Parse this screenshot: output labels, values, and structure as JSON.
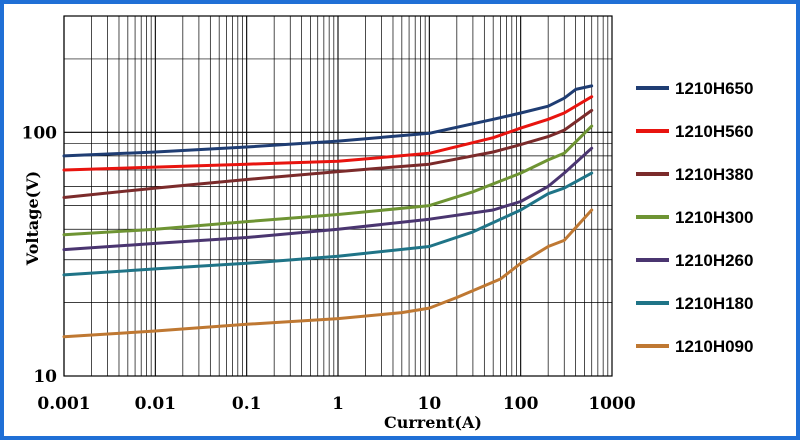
{
  "chart_data": {
    "type": "line",
    "title": "",
    "xlabel": "Current(A)",
    "ylabel": "Voltage(V)",
    "xscale": "log",
    "yscale": "log",
    "xlim": [
      0.001,
      1000
    ],
    "ylim": [
      10,
      300
    ],
    "x_ticks": [
      "0.001",
      "0.01",
      "0.1",
      "1",
      "10",
      "100",
      "1000"
    ],
    "y_ticks": [
      "10",
      "100"
    ],
    "grid": true,
    "legend_position": "right",
    "series": [
      {
        "name": "1210H650",
        "color": "#1f3d73",
        "points": [
          [
            0.001,
            80
          ],
          [
            0.01,
            83
          ],
          [
            0.1,
            87
          ],
          [
            1,
            92
          ],
          [
            10,
            99
          ],
          [
            50,
            113
          ],
          [
            100,
            120
          ],
          [
            200,
            128
          ],
          [
            300,
            138
          ],
          [
            400,
            150
          ],
          [
            600,
            155
          ]
        ]
      },
      {
        "name": "1210H560",
        "color": "#e8140f",
        "points": [
          [
            0.001,
            70
          ],
          [
            0.01,
            72
          ],
          [
            0.1,
            74
          ],
          [
            1,
            76
          ],
          [
            10,
            82
          ],
          [
            50,
            95
          ],
          [
            100,
            104
          ],
          [
            200,
            113
          ],
          [
            300,
            120
          ],
          [
            600,
            140
          ]
        ]
      },
      {
        "name": "1210H380",
        "color": "#7b2b2b",
        "points": [
          [
            0.001,
            54
          ],
          [
            0.01,
            59
          ],
          [
            0.1,
            64
          ],
          [
            1,
            69
          ],
          [
            10,
            74
          ],
          [
            50,
            83
          ],
          [
            100,
            89
          ],
          [
            200,
            96
          ],
          [
            300,
            102
          ],
          [
            600,
            123
          ]
        ]
      },
      {
        "name": "1210H300",
        "color": "#6e9433",
        "points": [
          [
            0.001,
            38
          ],
          [
            0.01,
            40
          ],
          [
            0.1,
            43
          ],
          [
            1,
            46
          ],
          [
            10,
            50
          ],
          [
            30,
            57
          ],
          [
            100,
            68
          ],
          [
            200,
            77
          ],
          [
            300,
            82
          ],
          [
            600,
            106
          ]
        ]
      },
      {
        "name": "1210H260",
        "color": "#4a3570",
        "points": [
          [
            0.001,
            33
          ],
          [
            0.01,
            35
          ],
          [
            0.1,
            37
          ],
          [
            1,
            40
          ],
          [
            10,
            44
          ],
          [
            50,
            48
          ],
          [
            100,
            52
          ],
          [
            200,
            60
          ],
          [
            300,
            68
          ],
          [
            600,
            86
          ]
        ]
      },
      {
        "name": "1210H180",
        "color": "#1f7487",
        "points": [
          [
            0.001,
            26
          ],
          [
            0.01,
            27.5
          ],
          [
            0.1,
            29
          ],
          [
            1,
            31
          ],
          [
            10,
            34
          ],
          [
            30,
            39
          ],
          [
            100,
            48
          ],
          [
            200,
            56
          ],
          [
            300,
            59
          ],
          [
            600,
            68
          ]
        ]
      },
      {
        "name": "1210H090",
        "color": "#bf7832",
        "points": [
          [
            0.001,
            14.5
          ],
          [
            0.01,
            15.3
          ],
          [
            0.1,
            16.3
          ],
          [
            1,
            17.2
          ],
          [
            5,
            18.2
          ],
          [
            10,
            19
          ],
          [
            20,
            21
          ],
          [
            60,
            25
          ],
          [
            100,
            29
          ],
          [
            200,
            34
          ],
          [
            300,
            36
          ],
          [
            600,
            48
          ]
        ]
      }
    ]
  }
}
